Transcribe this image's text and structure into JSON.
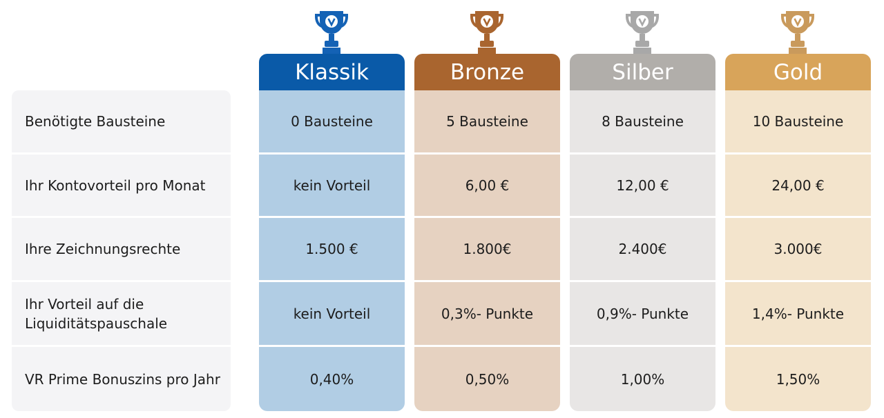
{
  "rows": [
    {
      "label": "Benötigte Bausteine"
    },
    {
      "label": "Ihr Kontovorteil pro Monat"
    },
    {
      "label": "Ihre Zeichnungsrechte"
    },
    {
      "label": "Ihr Vorteil auf die\nLiquiditätspauschale"
    },
    {
      "label": "VR Prime Bonuszins pro Jahr"
    }
  ],
  "tiers": [
    {
      "name": "Klassik",
      "header_color": "#0a5aa8",
      "body_color": "#b1cde4",
      "trophy_color": "#1462b5",
      "values": [
        "0 Bausteine",
        "kein Vorteil",
        "1.500 €",
        "kein Vorteil",
        "0,40%"
      ]
    },
    {
      "name": "Bronze",
      "header_color": "#a9652f",
      "body_color": "#e6d2c1",
      "trophy_color": "#a9652f",
      "values": [
        "5 Bausteine",
        "6,00 €",
        "1.800€",
        "0,3%- Punkte",
        "0,50%"
      ]
    },
    {
      "name": "Silber",
      "header_color": "#b1aeaa",
      "body_color": "#e8e6e5",
      "trophy_color": "#a8a8a8",
      "values": [
        "8 Bausteine",
        "12,00 €",
        "2.400€",
        "0,9%- Punkte",
        "1,00%"
      ]
    },
    {
      "name": "Gold",
      "header_color": "#d8a45a",
      "body_color": "#f3e4cc",
      "trophy_color": "#c99a5c",
      "values": [
        "10 Bausteine",
        "24,00 €",
        "3.000€",
        "1,4%- Punkte",
        "1,50%"
      ]
    }
  ]
}
